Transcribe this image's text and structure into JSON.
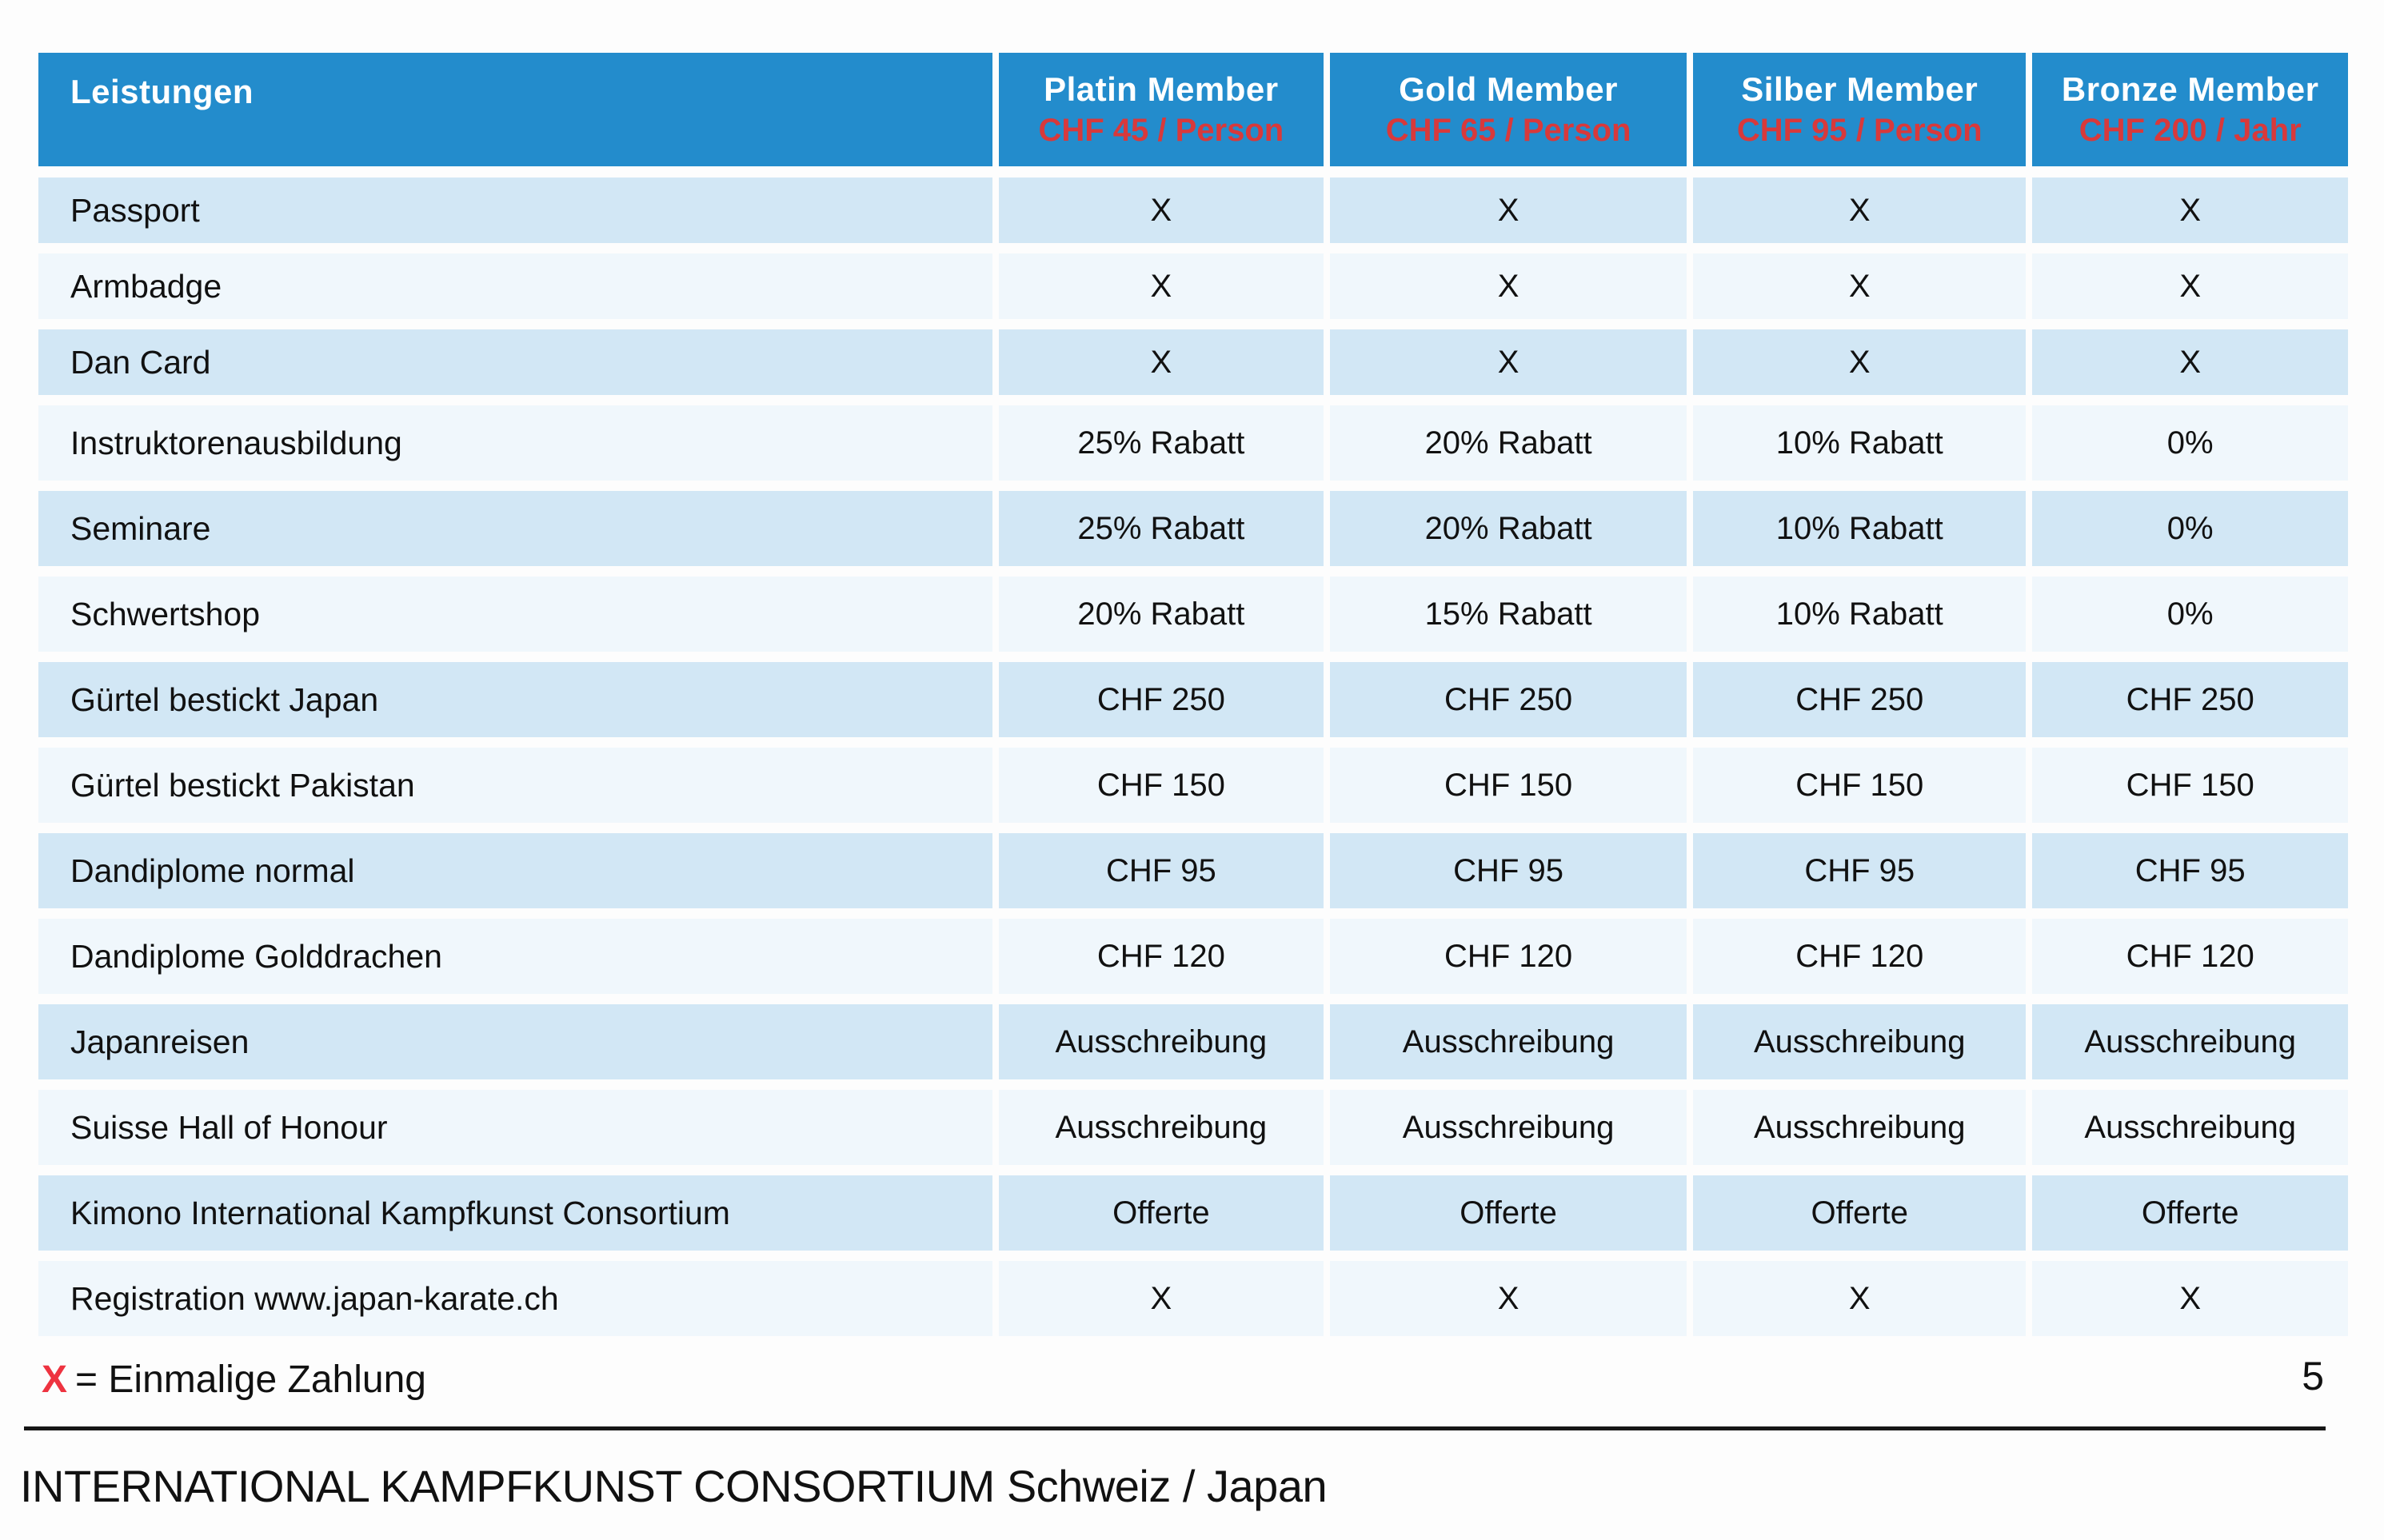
{
  "table": {
    "header": {
      "leistungen": "Leistungen",
      "columns": [
        {
          "name": "Platin Member",
          "price": "CHF 45 / Person"
        },
        {
          "name": "Gold Member",
          "price": "CHF 65 / Person"
        },
        {
          "name": "Silber Member",
          "price": "CHF 95 / Person"
        },
        {
          "name": "Bronze Member",
          "price": "CHF 200 / Jahr"
        }
      ]
    },
    "rows": [
      {
        "label": "Passport",
        "values": [
          "X",
          "X",
          "X",
          "X"
        ]
      },
      {
        "label": "Armbadge",
        "values": [
          "X",
          "X",
          "X",
          "X"
        ]
      },
      {
        "label": "Dan Card",
        "values": [
          "X",
          "X",
          "X",
          "X"
        ]
      },
      {
        "label": "Instruktorenausbildung",
        "values": [
          "25% Rabatt",
          "20% Rabatt",
          "10% Rabatt",
          "0%"
        ]
      },
      {
        "label": "Seminare",
        "values": [
          "25% Rabatt",
          "20% Rabatt",
          "10% Rabatt",
          "0%"
        ]
      },
      {
        "label": "Schwertshop",
        "values": [
          "20% Rabatt",
          "15% Rabatt",
          "10% Rabatt",
          "0%"
        ]
      },
      {
        "label": "Gürtel bestickt Japan",
        "values": [
          "CHF 250",
          "CHF 250",
          "CHF 250",
          "CHF 250"
        ]
      },
      {
        "label": "Gürtel bestickt Pakistan",
        "values": [
          "CHF 150",
          "CHF 150",
          "CHF 150",
          "CHF 150"
        ]
      },
      {
        "label": "Dandiplome normal",
        "values": [
          "CHF 95",
          "CHF 95",
          "CHF 95",
          "CHF 95"
        ]
      },
      {
        "label": "Dandiplome Golddrachen",
        "values": [
          "CHF 120",
          "CHF 120",
          "CHF 120",
          "CHF 120"
        ]
      },
      {
        "label": "Japanreisen",
        "values": [
          "Ausschreibung",
          "Ausschreibung",
          "Ausschreibung",
          "Ausschreibung"
        ]
      },
      {
        "label": "Suisse Hall of Honour",
        "values": [
          "Ausschreibung",
          "Ausschreibung",
          "Ausschreibung",
          "Ausschreibung"
        ]
      },
      {
        "label": "Kimono International Kampfkunst Consortium",
        "values": [
          "Offerte",
          "Offerte",
          "Offerte",
          "Offerte"
        ]
      },
      {
        "label": "Registration www.japan-karate.ch",
        "values": [
          "X",
          "X",
          "X",
          "X"
        ]
      }
    ]
  },
  "footer": {
    "legend_x": "X",
    "legend_text": "= Einmalige Zahlung",
    "page_number": "5",
    "org_line": "INTERNATIONAL KAMPFKUNST CONSORTIUM Schweiz / Japan"
  },
  "colors": {
    "header_blue": "#238ccc",
    "row_blue": "#d2e7f5",
    "row_pale": "#f0f7fc",
    "price_red": "#d8393b",
    "legend_red": "#ee3340"
  }
}
